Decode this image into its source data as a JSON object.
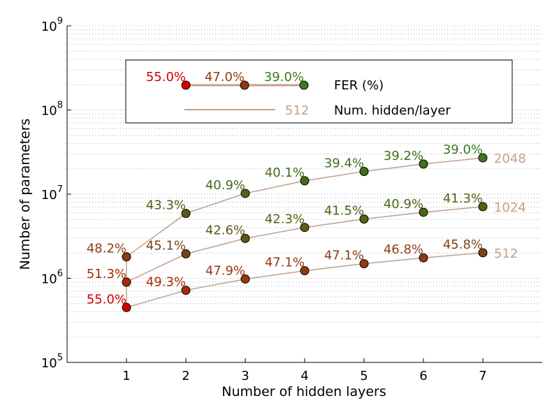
{
  "chart_data": {
    "type": "line",
    "title": "",
    "xlabel": "Number of hidden layers",
    "ylabel": "Number of parameters",
    "y_scale": "log",
    "xlim": [
      0,
      8
    ],
    "ylim": [
      100000,
      1000000000
    ],
    "x_ticks": [
      1,
      2,
      3,
      4,
      5,
      6,
      7
    ],
    "y_ticks": [
      {
        "value": 100000,
        "base": "10",
        "exp": "5"
      },
      {
        "value": 1000000,
        "base": "10",
        "exp": "6"
      },
      {
        "value": 10000000,
        "base": "10",
        "exp": "7"
      },
      {
        "value": 100000000,
        "base": "10",
        "exp": "8"
      },
      {
        "value": 1000000000,
        "base": "10",
        "exp": "9"
      }
    ],
    "grid": "horizontal dotted, major and minor",
    "line_color": "#c0a08a",
    "series": [
      {
        "name": "512",
        "x": [
          1,
          2,
          3,
          4,
          5,
          6,
          7
        ],
        "y": [
          450000,
          720000,
          980000,
          1230000,
          1490000,
          1750000,
          2010000
        ],
        "labels": [
          "55.0%",
          "49.3%",
          "47.9%",
          "47.1%",
          "47.1%",
          "46.8%",
          "45.8%"
        ],
        "colors": [
          "#d40000",
          "#a82a08",
          "#9a3610",
          "#8e3a12",
          "#8e3a12",
          "#8c3e14",
          "#7e4416"
        ]
      },
      {
        "name": "1024",
        "x": [
          1,
          2,
          3,
          4,
          5,
          6,
          7
        ],
        "y": [
          900000,
          1950000,
          2980000,
          4020000,
          5060000,
          6090000,
          7100000
        ],
        "labels": [
          "51.3%",
          "45.1%",
          "42.6%",
          "42.3%",
          "41.5%",
          "40.9%",
          "41.3%"
        ],
        "colors": [
          "#a82a08",
          "#7c4414",
          "#5e5a16",
          "#5c5c16",
          "#506216",
          "#4a6816",
          "#4e6416"
        ]
      },
      {
        "name": "2048",
        "x": [
          1,
          2,
          3,
          4,
          5,
          6,
          7
        ],
        "y": [
          1800000,
          5900000,
          10200000,
          14400000,
          18600000,
          22800000,
          27000000
        ],
        "labels": [
          "48.2%",
          "43.3%",
          "40.9%",
          "40.1%",
          "39.4%",
          "39.2%",
          "39.0%"
        ],
        "colors": [
          "#8e3a12",
          "#5e5816",
          "#4a6816",
          "#456c18",
          "#3f7018",
          "#3c721a",
          "#3a7a1c"
        ]
      }
    ],
    "legend": {
      "placement": "upper-center",
      "fer_samples": [
        {
          "label": "55.0%",
          "color": "#d40000"
        },
        {
          "label": "47.0%",
          "color": "#8e3a12"
        },
        {
          "label": "39.0%",
          "color": "#3a7a1c"
        }
      ],
      "fer_title": "FER (%)",
      "line_label": "512",
      "line_title": "Num. hidden/layer"
    }
  }
}
